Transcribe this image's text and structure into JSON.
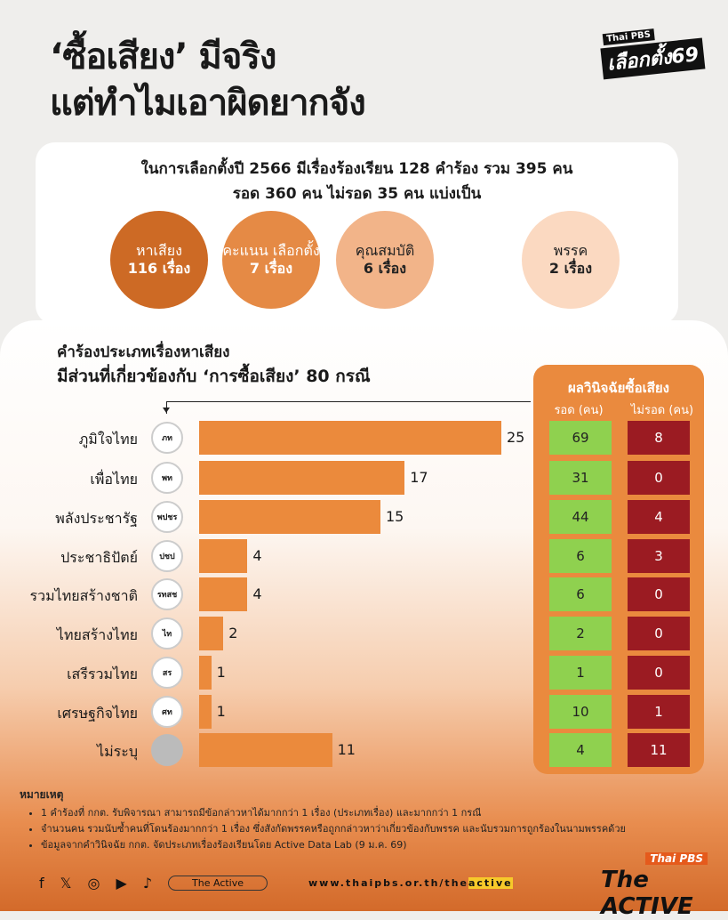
{
  "header": {
    "title_line1": "‘ซื้อเสียง’ มีจริง",
    "title_line2": "แต่ทำไมเอาผิดยากจัง",
    "logo_pbs": "Thai PBS",
    "logo_main": "เลือกตั้ง69"
  },
  "summary": {
    "line1": "ในการเลือกตั้งปี 2566 มีเรื่องร้องเรียน 128 คำร้อง รวม 395 คน",
    "line2": "รอด 360 คน ไม่รอด 35 คน แบ่งเป็น",
    "categories": [
      {
        "label": "หาเสียง",
        "count": "116 เรื่อง",
        "color": "#cd6a25"
      },
      {
        "label": "คะแนน เลือกตั้ง",
        "count": "7 เรื่อง",
        "color": "#e58a45"
      },
      {
        "label": "คุณสมบัติ",
        "count": "6 เรื่อง",
        "color": "#f2b489"
      },
      {
        "label": "พรรค",
        "count": "2 เรื่อง",
        "color": "#fbd9c1"
      }
    ]
  },
  "section": {
    "subtitle": "คำร้องประเภทเรื่องหาเสียง",
    "title": "มีส่วนที่เกี่ยวข้องกับ ‘การซื้อเสียง’ 80 กรณี"
  },
  "chart_data": {
    "type": "bar",
    "orientation": "horizontal",
    "categories": [
      "ภูมิใจไทย",
      "เพื่อไทย",
      "พลังประชารัฐ",
      "ประชาธิปัตย์",
      "รวมไทยสร้างชาติ",
      "ไทยสร้างไทย",
      "เสรีรวมไทย",
      "เศรษฐกิจไทย",
      "ไม่ระบุ"
    ],
    "values": [
      25,
      17,
      15,
      4,
      4,
      2,
      1,
      1,
      11
    ],
    "bar_color": "#eb8a3c",
    "table": {
      "title": "ผลวินิจฉัยซื้อเสียง",
      "columns": [
        "รอด (คน)",
        "ไม่รอด (คน)"
      ],
      "survived": [
        69,
        31,
        44,
        6,
        6,
        2,
        1,
        10,
        4
      ],
      "not_survived": [
        8,
        0,
        4,
        3,
        0,
        0,
        0,
        1,
        11
      ],
      "colors": [
        "#8fd14f",
        "#9b1b22"
      ]
    }
  },
  "party_logos": [
    "ภท",
    "พท",
    "พปชร",
    "ปชป",
    "รทสช",
    "ไท",
    "สร",
    "ศท",
    ""
  ],
  "notes": {
    "heading": "หมายเหตุ",
    "items": [
      "1 คำร้องที่ กกต. รับพิจารณา สามารถมีข้อกล่าวหาได้มากกว่า 1 เรื่อง (ประเภทเรื่อง) และมากกว่า 1 กรณี",
      "จำนวนคน รวมนับซ้ำคนที่โดนร้องมากกว่า 1 เรื่อง ซึ่งสังกัดพรรคหรือถูกกล่าวหาว่าเกี่ยวข้องกับพรรค และนับรวมการถูกร้องในนามพรรคด้วย",
      "ข้อมูลจากคำวินิจฉัย กกต. จัดประเภทเรื่องร้องเรียนโดย Active Data Lab (9 ม.ค. 69)"
    ]
  },
  "footer": {
    "icons": [
      "facebook-icon",
      "x-icon",
      "instagram-icon",
      "youtube-icon",
      "tiktok-icon"
    ],
    "tag": "The Active",
    "url_a": "www.thaipbs.or.th/the",
    "url_b": "active",
    "brand_pbs": "Thai PBS",
    "brand_main": "The ACTIVE"
  }
}
